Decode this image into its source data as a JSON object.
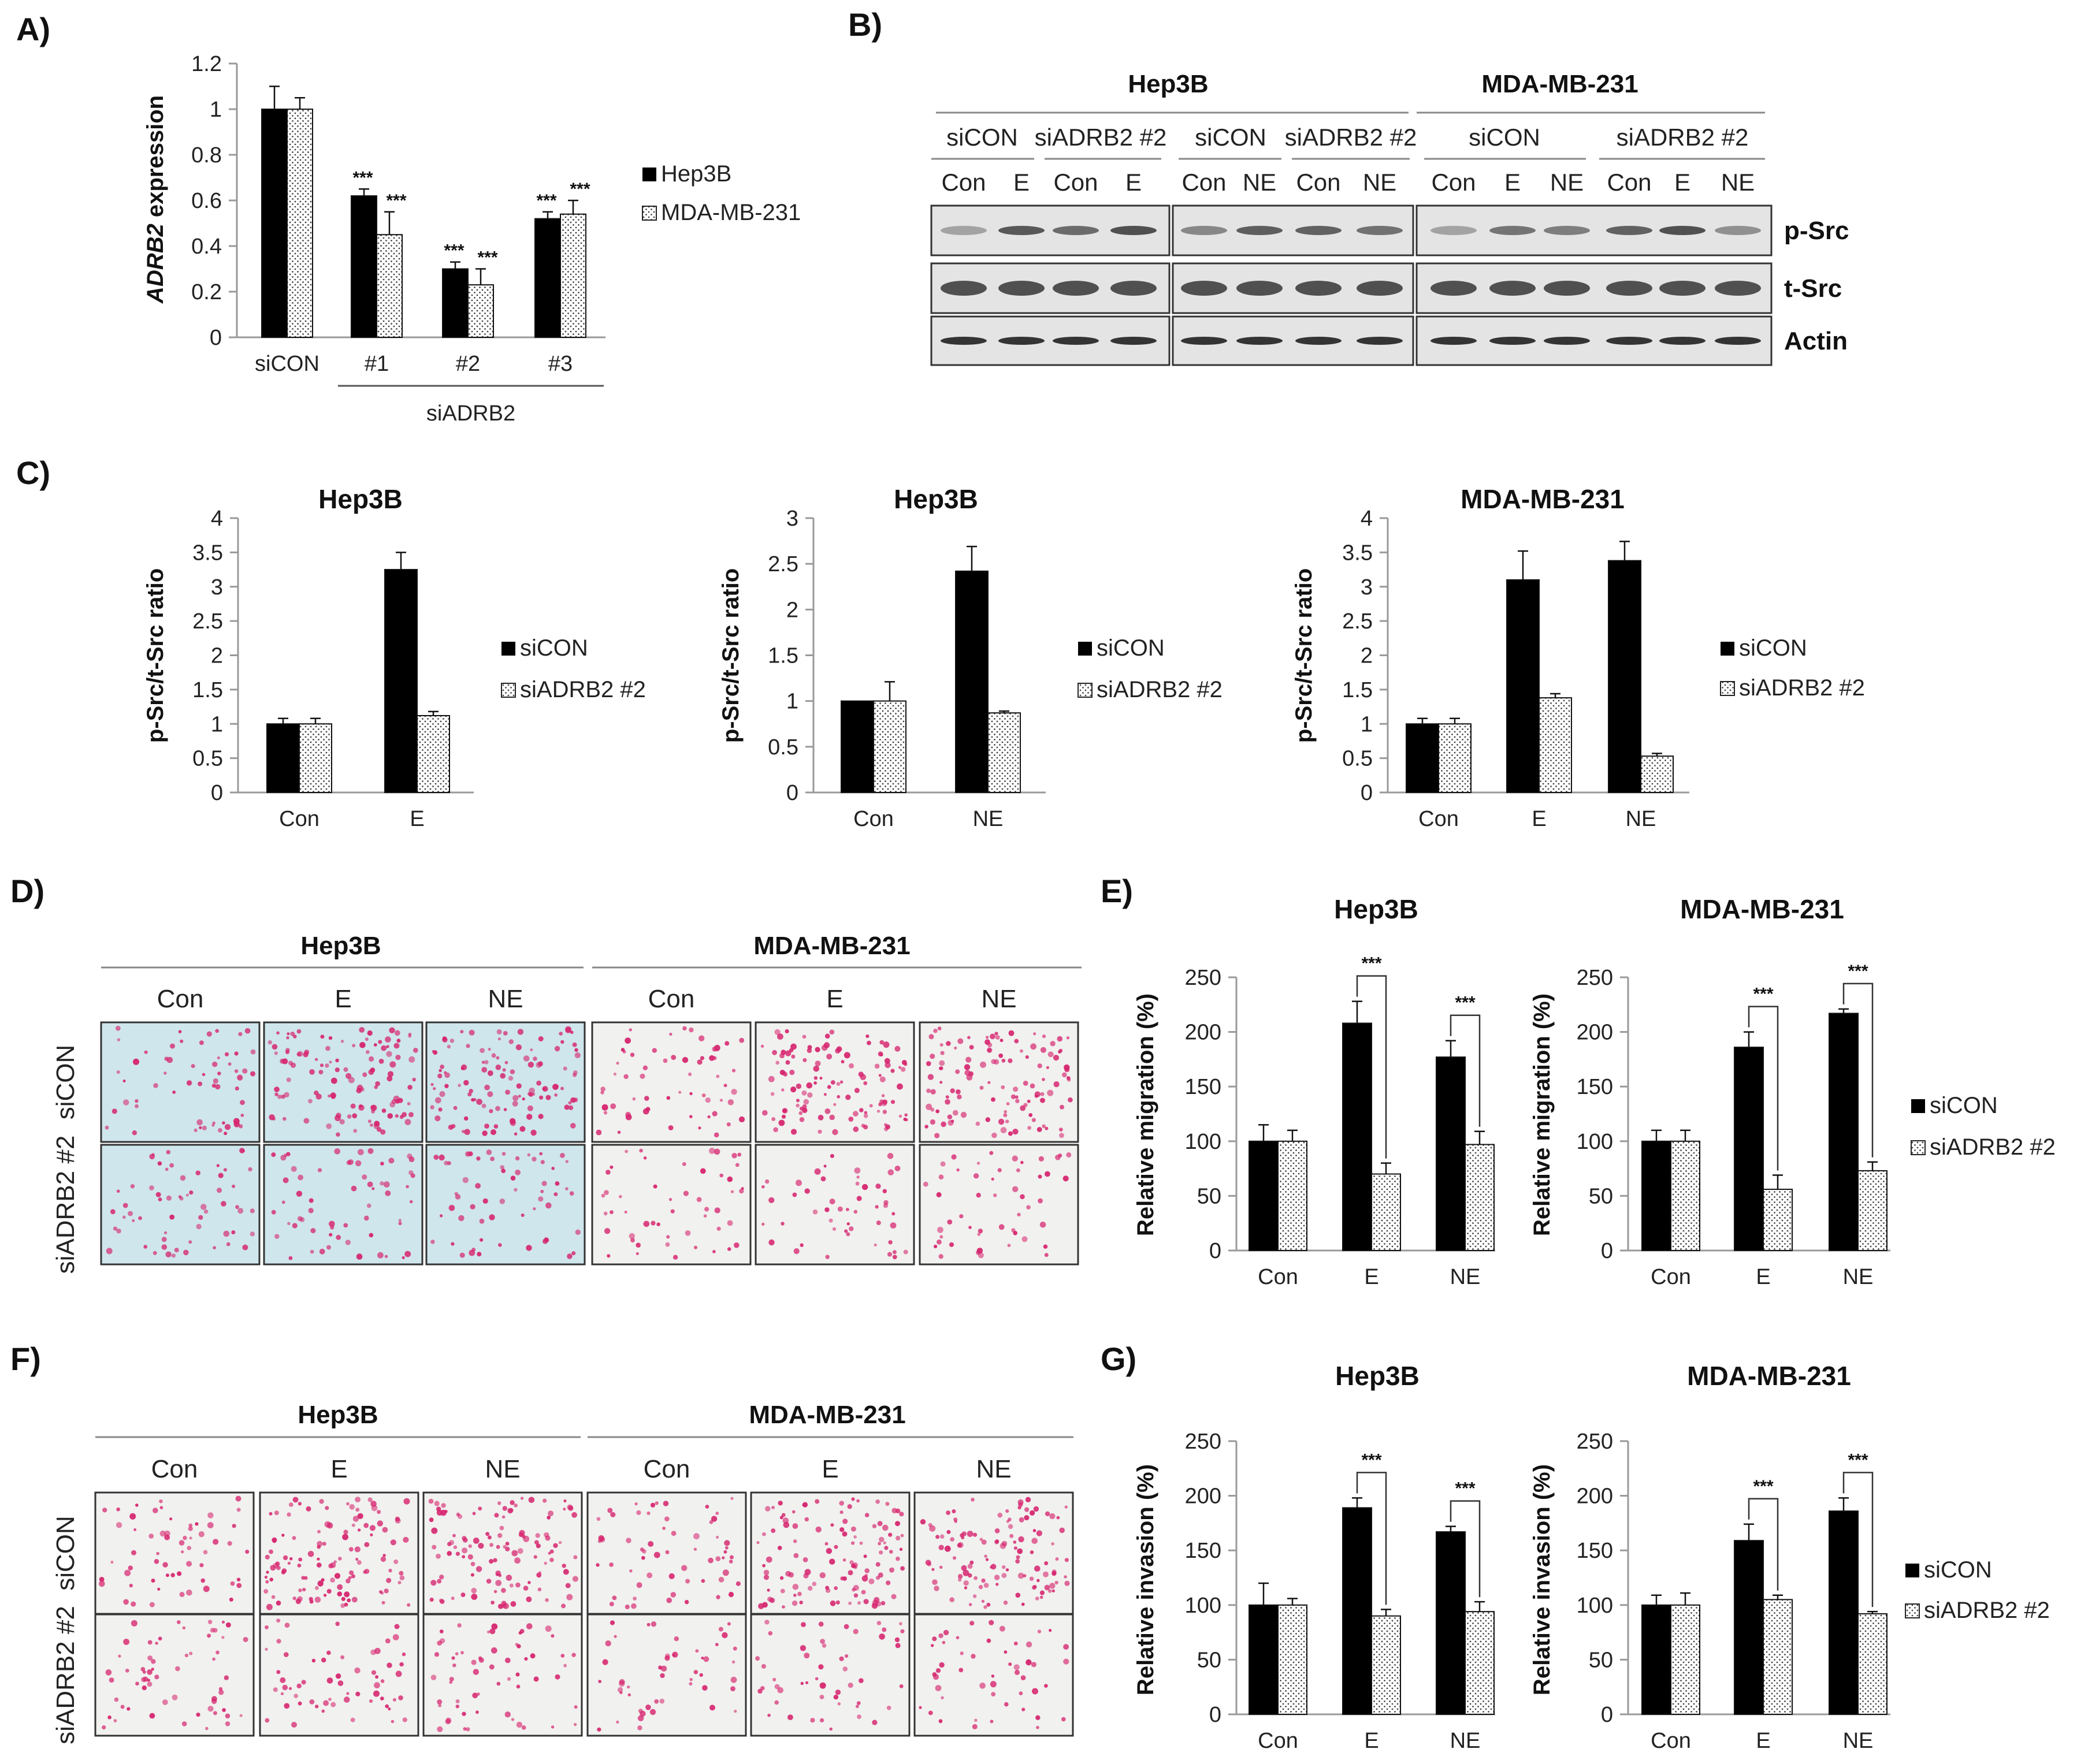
{
  "colors": {
    "solid": "#000000",
    "dotted_fill": "#ffffff",
    "axis": "#999999",
    "blot_bg": "#e4e4e4",
    "band": "#2a2a2a",
    "cell_pink": "#d6246e",
    "hep_bg": "#cfe6ec",
    "mda_bg": "#f1f1ef"
  },
  "panel_labels": {
    "A": "A)",
    "B": "B)",
    "C": "C)",
    "D": "D)",
    "E": "E)",
    "F": "F)",
    "G": "G)"
  },
  "legends": {
    "A": [
      "Hep3B",
      "MDA-MB-231"
    ],
    "siRNA": [
      "siCON",
      "siADRB2 #2"
    ]
  },
  "chart_data": [
    {
      "id": "A",
      "type": "bar",
      "title": "",
      "ylabel_italic": "ADRB2",
      "ylabel_rest": " expression",
      "categories": [
        "siCON",
        "#1",
        "#2",
        "#3"
      ],
      "group_label": "siADRB2",
      "yticks": [
        "0",
        "0.2",
        "0.4",
        "0.6",
        "0.8",
        "1",
        "1.2"
      ],
      "ylim": [
        0,
        1.2
      ],
      "series": [
        {
          "name": "Hep3B",
          "values": [
            1.0,
            0.62,
            0.3,
            0.52
          ],
          "errors": [
            0.1,
            0.03,
            0.03,
            0.03
          ]
        },
        {
          "name": "MDA-MB-231",
          "values": [
            1.0,
            0.45,
            0.23,
            0.54
          ],
          "errors": [
            0.05,
            0.1,
            0.07,
            0.06
          ]
        }
      ],
      "stars": [
        "",
        "***",
        "***",
        "***"
      ]
    },
    {
      "id": "C1",
      "type": "bar",
      "title": "Hep3B",
      "ylabel": "p-Src/t-Src ratio",
      "categories": [
        "Con",
        "E"
      ],
      "yticks": [
        "0",
        "0.5",
        "1",
        "1.5",
        "2",
        "2.5",
        "3",
        "3.5",
        "4"
      ],
      "ylim": [
        0,
        4
      ],
      "series": [
        {
          "name": "siCON",
          "values": [
            1.0,
            3.25
          ],
          "errors": [
            0.08,
            0.25
          ]
        },
        {
          "name": "siADRB2 #2",
          "values": [
            1.0,
            1.12
          ],
          "errors": [
            0.08,
            0.06
          ]
        }
      ]
    },
    {
      "id": "C2",
      "type": "bar",
      "title": "Hep3B",
      "ylabel": "p-Src/t-Src ratio",
      "categories": [
        "Con",
        "NE"
      ],
      "yticks": [
        "0",
        "0.5",
        "1",
        "1.5",
        "2",
        "2.5",
        "3"
      ],
      "ylim": [
        0,
        3
      ],
      "series": [
        {
          "name": "siCON",
          "values": [
            1.0,
            2.42
          ],
          "errors": [
            0.0,
            0.27
          ]
        },
        {
          "name": "siADRB2 #2",
          "values": [
            1.0,
            0.87
          ],
          "errors": [
            0.21,
            0.02
          ]
        }
      ]
    },
    {
      "id": "C3",
      "type": "bar",
      "title": "MDA-MB-231",
      "ylabel": "p-Src/t-Src ratio",
      "categories": [
        "Con",
        "E",
        "NE"
      ],
      "yticks": [
        "0",
        "0.5",
        "1",
        "1.5",
        "2",
        "2.5",
        "3",
        "3.5",
        "4"
      ],
      "ylim": [
        0,
        4
      ],
      "series": [
        {
          "name": "siCON",
          "values": [
            1.0,
            3.1,
            3.38
          ],
          "errors": [
            0.08,
            0.42,
            0.28
          ]
        },
        {
          "name": "siADRB2 #2",
          "values": [
            1.0,
            1.38,
            0.53
          ],
          "errors": [
            0.08,
            0.06,
            0.04
          ]
        }
      ]
    },
    {
      "id": "E1",
      "type": "bar",
      "title": "Hep3B",
      "ylabel": "Relative migration (%)",
      "categories": [
        "Con",
        "E",
        "NE"
      ],
      "yticks": [
        "0",
        "50",
        "100",
        "150",
        "200",
        "250"
      ],
      "ylim": [
        0,
        250
      ],
      "series": [
        {
          "name": "siCON",
          "values": [
            100,
            208,
            177
          ],
          "errors": [
            15,
            20,
            15
          ]
        },
        {
          "name": "siADRB2 #2",
          "values": [
            100,
            70,
            97
          ],
          "errors": [
            10,
            10,
            12
          ]
        }
      ],
      "brackets": [
        1,
        2
      ],
      "bracket_label": "***"
    },
    {
      "id": "E2",
      "type": "bar",
      "title": "MDA-MB-231",
      "ylabel": "Relative migration (%)",
      "categories": [
        "Con",
        "E",
        "NE"
      ],
      "yticks": [
        "0",
        "50",
        "100",
        "150",
        "200",
        "250"
      ],
      "ylim": [
        0,
        250
      ],
      "series": [
        {
          "name": "siCON",
          "values": [
            100,
            186,
            217
          ],
          "errors": [
            10,
            14,
            4
          ]
        },
        {
          "name": "siADRB2 #2",
          "values": [
            100,
            56,
            73
          ],
          "errors": [
            10,
            13,
            8
          ]
        }
      ],
      "brackets": [
        1,
        2
      ],
      "bracket_label": "***"
    },
    {
      "id": "G1",
      "type": "bar",
      "title": "Hep3B",
      "ylabel": "Relative invasion (%)",
      "categories": [
        "Con",
        "E",
        "NE"
      ],
      "yticks": [
        "0",
        "50",
        "100",
        "150",
        "200",
        "250"
      ],
      "ylim": [
        0,
        250
      ],
      "series": [
        {
          "name": "siCON",
          "values": [
            100,
            189,
            167
          ],
          "errors": [
            20,
            9,
            5
          ]
        },
        {
          "name": "siADRB2 #2",
          "values": [
            100,
            90,
            94
          ],
          "errors": [
            6,
            6,
            9
          ]
        }
      ],
      "brackets": [
        1,
        2
      ],
      "bracket_label": "***"
    },
    {
      "id": "G2",
      "type": "bar",
      "title": "MDA-MB-231",
      "ylabel": "Relative invasion (%)",
      "categories": [
        "Con",
        "E",
        "NE"
      ],
      "yticks": [
        "0",
        "50",
        "100",
        "150",
        "200",
        "250"
      ],
      "ylim": [
        0,
        250
      ],
      "series": [
        {
          "name": "siCON",
          "values": [
            100,
            159,
            186
          ],
          "errors": [
            9,
            15,
            12
          ]
        },
        {
          "name": "siADRB2 #2",
          "values": [
            100,
            105,
            92
          ],
          "errors": [
            11,
            4,
            2
          ]
        }
      ],
      "brackets": [
        1,
        2
      ],
      "bracket_label": "***"
    }
  ],
  "western_blot": {
    "cell_lines": [
      "Hep3B",
      "MDA-MB-231"
    ],
    "sirna_groups": [
      "siCON",
      "siADRB2 #2",
      "siCON",
      "siADRB2 #2",
      "siCON",
      "siADRB2 #2"
    ],
    "lanes": [
      "Con",
      "E",
      "Con",
      "E",
      "Con",
      "NE",
      "Con",
      "NE",
      "Con",
      "E",
      "NE",
      "Con",
      "E",
      "NE"
    ],
    "proteins": [
      "p-Src",
      "t-Src",
      "Actin"
    ],
    "p_src_intensity": [
      0.35,
      0.75,
      0.65,
      0.8,
      0.5,
      0.72,
      0.7,
      0.62,
      0.35,
      0.6,
      0.55,
      0.7,
      0.8,
      0.45
    ]
  },
  "micrographs": {
    "cell_lines": [
      "Hep3B",
      "MDA-MB-231"
    ],
    "treatments": [
      "Con",
      "E",
      "NE",
      "Con",
      "E",
      "NE"
    ],
    "rows": [
      "siCON",
      "siADRB2 #2"
    ]
  }
}
